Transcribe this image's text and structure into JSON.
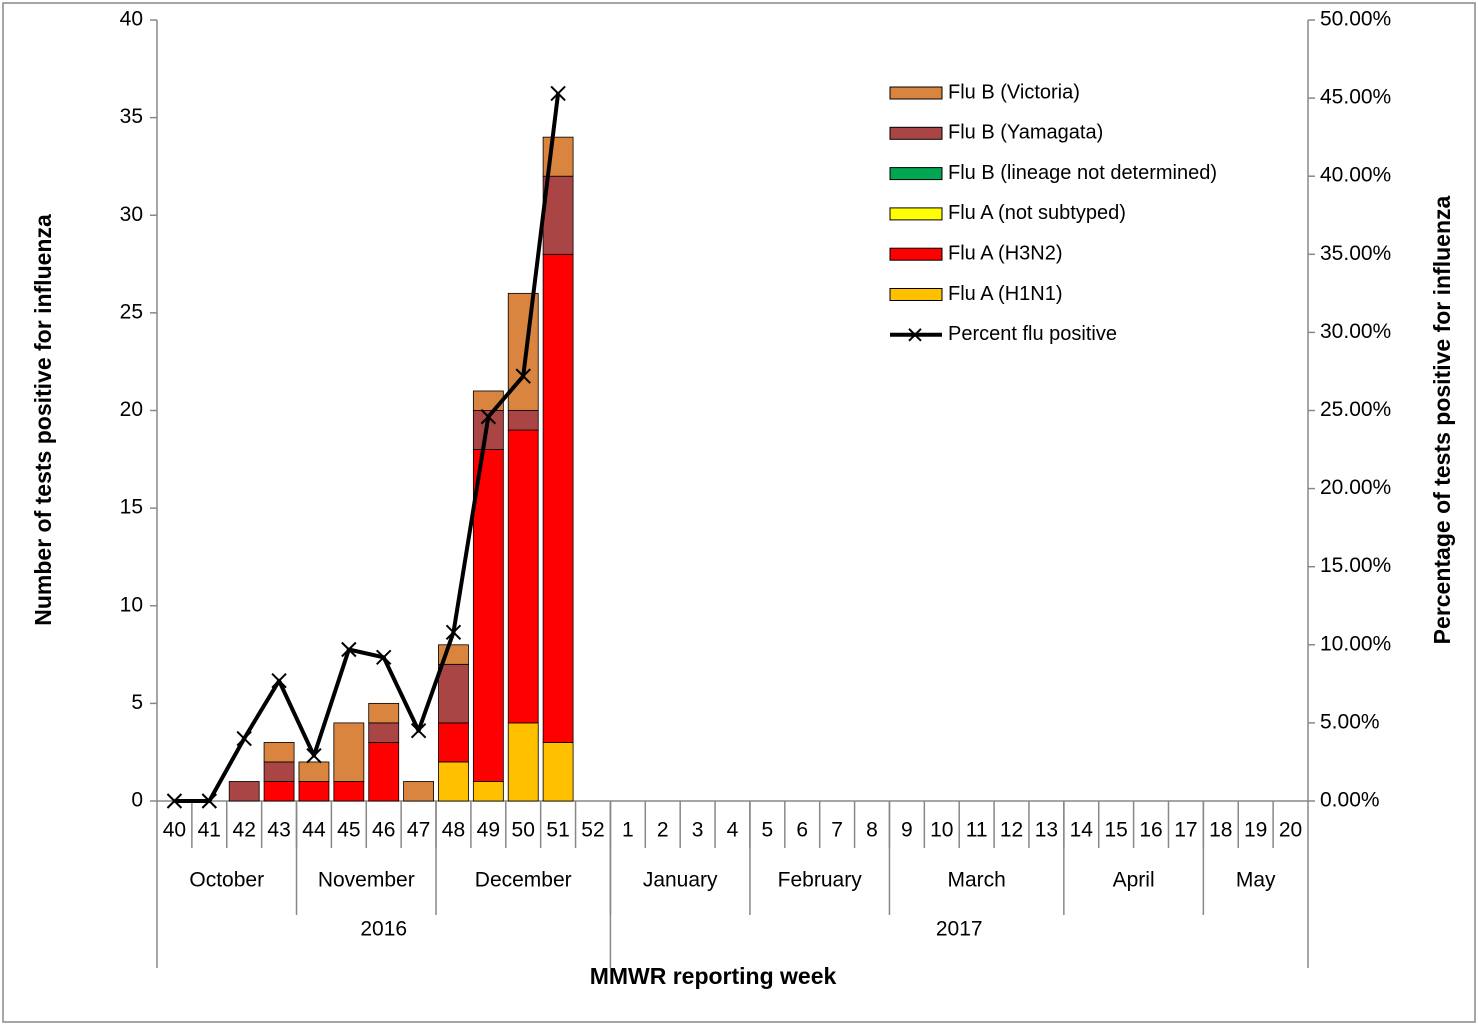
{
  "chart_data": {
    "type": "bar",
    "stacked": true,
    "y_label": "Number of tests positive for influenza",
    "y2_label": "Percentage  of  tests  positive for influenza",
    "x_label": "MMWR reporting week",
    "categories": [
      "40",
      "41",
      "42",
      "43",
      "44",
      "45",
      "46",
      "47",
      "48",
      "49",
      "50",
      "51",
      "52",
      "1",
      "2",
      "3",
      "4",
      "5",
      "6",
      "7",
      "8",
      "9",
      "10",
      "11",
      "12",
      "13",
      "14",
      "15",
      "16",
      "17",
      "18",
      "19",
      "20"
    ],
    "months": [
      {
        "label": "October",
        "span": 4
      },
      {
        "label": "November",
        "span": 4
      },
      {
        "label": "December",
        "span": 5
      },
      {
        "label": "January",
        "span": 4
      },
      {
        "label": "February",
        "span": 4
      },
      {
        "label": "March",
        "span": 5
      },
      {
        "label": "April",
        "span": 4
      },
      {
        "label": "May",
        "span": 3
      }
    ],
    "years": [
      {
        "label": "2016",
        "span": 13
      },
      {
        "label": "2017",
        "span": 20
      }
    ],
    "series": [
      {
        "name": "Flu B (Victoria)",
        "color": "#d9843f",
        "values": [
          0,
          0,
          0,
          1,
          1,
          3,
          1,
          1,
          1,
          1,
          6,
          2,
          null,
          null,
          null,
          null,
          null,
          null,
          null,
          null,
          null,
          null,
          null,
          null,
          null,
          null,
          null,
          null,
          null,
          null,
          null,
          null,
          null
        ]
      },
      {
        "name": "Flu B (Yamagata)",
        "color": "#a94545",
        "values": [
          0,
          0,
          1,
          1,
          0,
          0,
          1,
          0,
          3,
          2,
          1,
          4,
          null,
          null,
          null,
          null,
          null,
          null,
          null,
          null,
          null,
          null,
          null,
          null,
          null,
          null,
          null,
          null,
          null,
          null,
          null,
          null,
          null
        ]
      },
      {
        "name": "Flu B (lineage not determined)",
        "color": "#00a651",
        "values": [
          0,
          0,
          0,
          0,
          0,
          0,
          0,
          0,
          0,
          0,
          0,
          0,
          null,
          null,
          null,
          null,
          null,
          null,
          null,
          null,
          null,
          null,
          null,
          null,
          null,
          null,
          null,
          null,
          null,
          null,
          null,
          null,
          null
        ]
      },
      {
        "name": "Flu A (not subtyped)",
        "color": "#ffff00",
        "values": [
          0,
          0,
          0,
          0,
          0,
          0,
          0,
          0,
          0,
          0,
          0,
          0,
          null,
          null,
          null,
          null,
          null,
          null,
          null,
          null,
          null,
          null,
          null,
          null,
          null,
          null,
          null,
          null,
          null,
          null,
          null,
          null,
          null
        ]
      },
      {
        "name": "Flu A (H3N2)",
        "color": "#ff0000",
        "values": [
          0,
          0,
          0,
          1,
          1,
          1,
          3,
          0,
          2,
          17,
          15,
          25,
          null,
          null,
          null,
          null,
          null,
          null,
          null,
          null,
          null,
          null,
          null,
          null,
          null,
          null,
          null,
          null,
          null,
          null,
          null,
          null,
          null
        ]
      },
      {
        "name": "Flu A (H1N1)",
        "color": "#ffc000",
        "values": [
          0,
          0,
          0,
          0,
          0,
          0,
          0,
          0,
          2,
          1,
          4,
          3,
          null,
          null,
          null,
          null,
          null,
          null,
          null,
          null,
          null,
          null,
          null,
          null,
          null,
          null,
          null,
          null,
          null,
          null,
          null,
          null,
          null
        ]
      },
      {
        "name": "Percent flu positive",
        "color": "#000000",
        "type": "line",
        "axis": "y2",
        "values": [
          0,
          0,
          4.0,
          7.7,
          2.9,
          9.7,
          9.2,
          4.5,
          10.8,
          24.6,
          27.2,
          45.3,
          null,
          null,
          null,
          null,
          null,
          null,
          null,
          null,
          null,
          null,
          null,
          null,
          null,
          null,
          null,
          null,
          null,
          null,
          null,
          null,
          null
        ]
      }
    ],
    "ylim": [
      0,
      40
    ],
    "yticks": [
      0,
      5,
      10,
      15,
      20,
      25,
      30,
      35,
      40
    ],
    "y2lim": [
      0,
      50
    ],
    "y2ticks": [
      {
        "value": 0,
        "label": "0.00%"
      },
      {
        "value": 5,
        "label": "5.00%"
      },
      {
        "value": 10,
        "label": "10.00%"
      },
      {
        "value": 15,
        "label": "15.00%"
      },
      {
        "value": 20,
        "label": "20.00%"
      },
      {
        "value": 25,
        "label": "25.00%"
      },
      {
        "value": 30,
        "label": "30.00%"
      },
      {
        "value": 35,
        "label": "35.00%"
      },
      {
        "value": 40,
        "label": "40.00%"
      },
      {
        "value": 45,
        "label": "45.00%"
      },
      {
        "value": 50,
        "label": "50.00%"
      }
    ],
    "legend": "upper right"
  }
}
